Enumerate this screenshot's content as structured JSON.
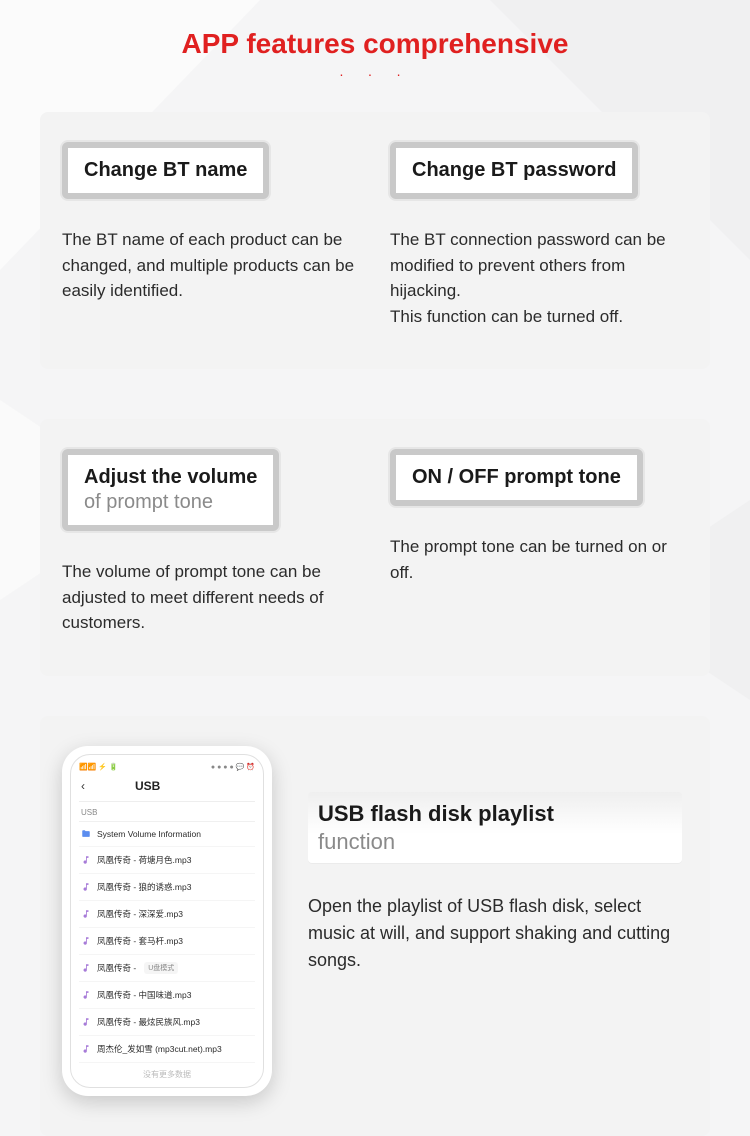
{
  "colors": {
    "accent": "#e02020",
    "bg": "#f5f5f6",
    "panel_bg": "#f3f3f3",
    "btn_border": "#c9c9c9",
    "text": "#2b2b2b",
    "muted": "#8a8a8a"
  },
  "header": {
    "title": "APP features comprehensive",
    "dots": "· · ·"
  },
  "panel1": {
    "left": {
      "button_line1": "Change BT name",
      "desc": "The BT name of each product can be changed, and multiple products can be easily identified."
    },
    "right": {
      "button_line1": "Change BT password",
      "desc": "The BT connection password can be modified to prevent others from hijacking.\nThis function can be turned off."
    }
  },
  "panel2": {
    "left": {
      "button_line1": "Adjust the volume",
      "button_line2": "of prompt tone",
      "desc": "The volume of prompt tone can be adjusted to meet different needs of customers."
    },
    "right": {
      "button_line1": "ON / OFF prompt tone",
      "desc": "The prompt tone can be turned on or off."
    }
  },
  "usb": {
    "title_line1": "USB flash disk playlist",
    "title_line2": "function",
    "desc": "Open the playlist of USB flash disk, select music at will, and support shaking and cutting songs.",
    "phone": {
      "status_left": "📶📶 ⚡ 🔋",
      "status_right": "● ● ● ● 💬 ⏰",
      "back": "‹",
      "screen_title": "USB",
      "section_label": "USB",
      "items": [
        {
          "icon": "folder",
          "label": "System Volume Information"
        },
        {
          "icon": "music",
          "label": "凤凰传奇 - 荷塘月色.mp3"
        },
        {
          "icon": "music",
          "label": "凤凰传奇 - 狼的诱惑.mp3"
        },
        {
          "icon": "music",
          "label": "凤凰传奇 - 深深爱.mp3"
        },
        {
          "icon": "music",
          "label": "凤凰传奇 - 套马杆.mp3"
        },
        {
          "icon": "music",
          "label": "凤凰传奇 - ",
          "tag": "U盘模式"
        },
        {
          "icon": "music",
          "label": "凤凰传奇 - 中国味道.mp3"
        },
        {
          "icon": "music",
          "label": "凤凰传奇 - 最炫民族风.mp3"
        },
        {
          "icon": "music",
          "label": "周杰伦_发如雪 (mp3cut.net).mp3"
        }
      ],
      "footer": "没有更多数据"
    }
  }
}
